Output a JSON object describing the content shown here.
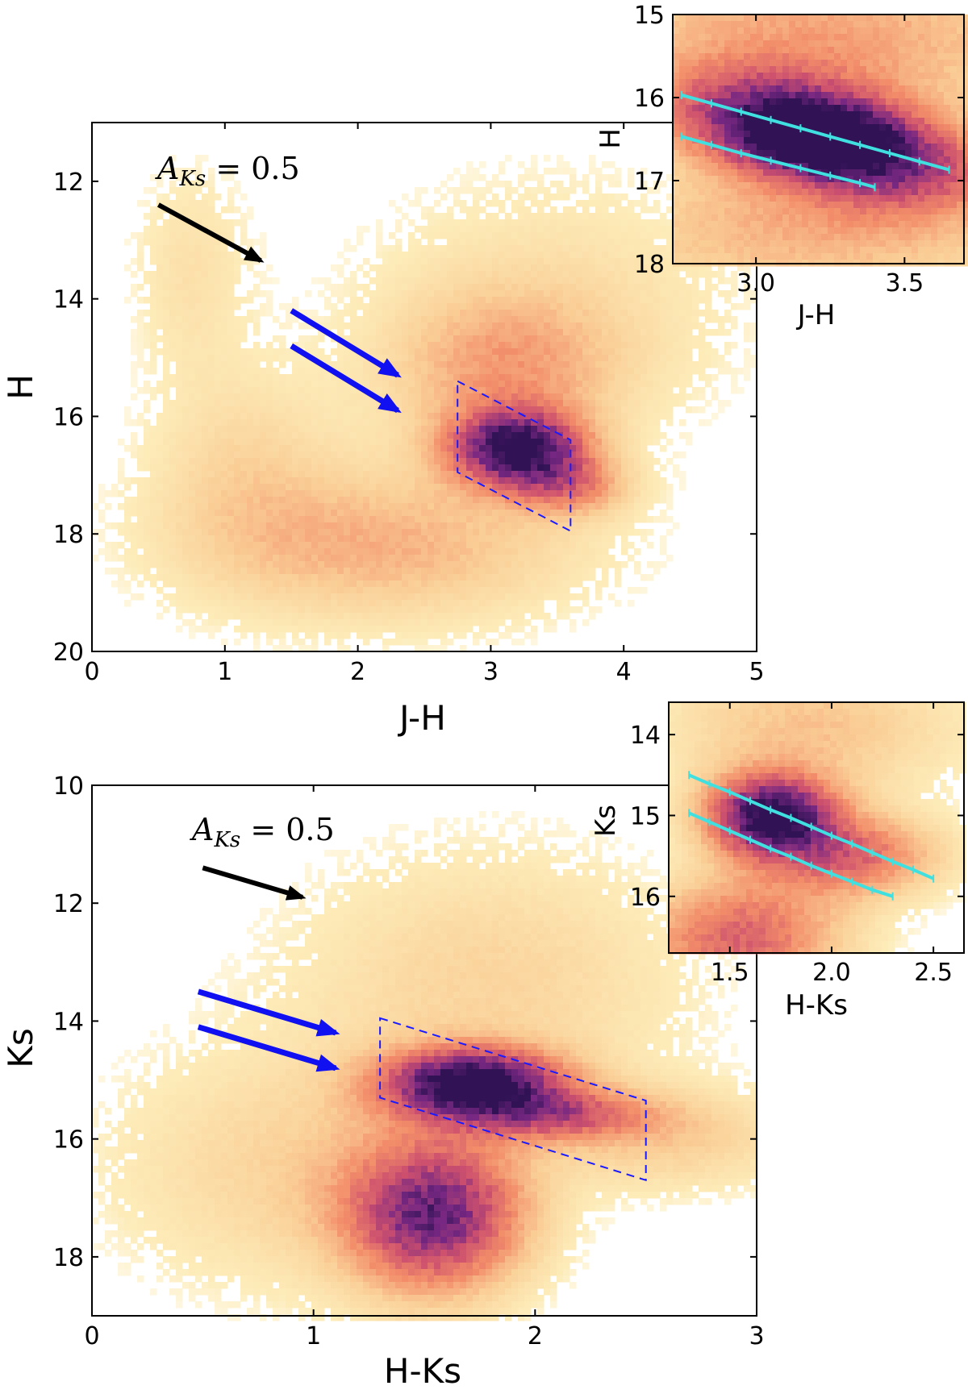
{
  "chart_data": [
    {
      "id": "top-main",
      "type": "heatmap",
      "xlabel": "J-H",
      "ylabel": "H",
      "xlim": [
        0,
        5
      ],
      "ylim": [
        20,
        11
      ],
      "y_inverted": true,
      "xticks": [
        0,
        1,
        2,
        3,
        4,
        5
      ],
      "yticks": [
        12,
        14,
        16,
        18,
        20
      ],
      "annotation": {
        "text": "A_{Ks} = 0.5",
        "display": "A",
        "subscript": "Ks",
        "suffix": " = 0.5"
      },
      "black_arrow": {
        "from": [
          0.5,
          12.4
        ],
        "to": [
          1.27,
          13.35
        ]
      },
      "blue_arrows": [
        {
          "from": [
            1.5,
            14.2
          ],
          "to": [
            2.3,
            15.3
          ]
        },
        {
          "from": [
            1.5,
            14.8
          ],
          "to": [
            2.3,
            15.9
          ]
        }
      ],
      "selection_box": [
        [
          2.75,
          15.4
        ],
        [
          3.6,
          16.4
        ],
        [
          3.6,
          17.95
        ],
        [
          2.75,
          16.95
        ]
      ],
      "density_blobs": [
        {
          "x": 0.75,
          "y": 13.5,
          "sx": 0.3,
          "sy": 1.2,
          "w": 0.12
        },
        {
          "x": 1.15,
          "y": 16.8,
          "sx": 0.5,
          "sy": 1.2,
          "w": 0.15
        },
        {
          "x": 2.2,
          "y": 18.2,
          "sx": 1.0,
          "sy": 0.9,
          "w": 0.3
        },
        {
          "x": 3.1,
          "y": 15.2,
          "sx": 0.6,
          "sy": 0.9,
          "w": 0.3
        },
        {
          "x": 3.2,
          "y": 16.55,
          "sx": 0.35,
          "sy": 0.45,
          "w": 0.95
        },
        {
          "x": 3.6,
          "y": 17.2,
          "sx": 0.3,
          "sy": 0.35,
          "w": 0.35
        },
        {
          "x": 3.5,
          "y": 14.0,
          "sx": 1.0,
          "sy": 1.5,
          "w": 0.12
        }
      ]
    },
    {
      "id": "top-inset",
      "type": "heatmap",
      "xlabel": "J-H",
      "ylabel": "H",
      "xlim": [
        2.72,
        3.7
      ],
      "ylim": [
        18,
        15
      ],
      "y_inverted": true,
      "xticks": [
        3.0,
        3.5
      ],
      "xtick_labels": [
        "3.0",
        "3.5"
      ],
      "yticks": [
        15,
        16,
        17,
        18
      ],
      "series": [
        {
          "x": [
            2.75,
            2.85,
            2.95,
            3.05,
            3.15,
            3.25,
            3.35,
            3.45,
            3.55,
            3.65
          ],
          "y": [
            15.97,
            16.07,
            16.17,
            16.27,
            16.37,
            16.47,
            16.57,
            16.67,
            16.77,
            16.87
          ]
        },
        {
          "x": [
            2.75,
            2.85,
            2.95,
            3.05,
            3.15,
            3.25,
            3.35,
            3.4
          ],
          "y": [
            16.47,
            16.57,
            16.67,
            16.76,
            16.85,
            16.94,
            17.03,
            17.08
          ]
        }
      ],
      "series_color": "#40e0e0",
      "density_blobs": [
        {
          "x": 3.22,
          "y": 16.5,
          "sx": 0.22,
          "sy": 0.3,
          "w": 1.0
        },
        {
          "x": 3.0,
          "y": 16.1,
          "sx": 0.25,
          "sy": 0.35,
          "w": 0.5
        },
        {
          "x": 3.5,
          "y": 16.9,
          "sx": 0.25,
          "sy": 0.35,
          "w": 0.5
        },
        {
          "x": 3.2,
          "y": 15.3,
          "sx": 0.6,
          "sy": 0.8,
          "w": 0.35
        },
        {
          "x": 3.2,
          "y": 17.6,
          "sx": 0.6,
          "sy": 0.6,
          "w": 0.3
        }
      ]
    },
    {
      "id": "bottom-main",
      "type": "heatmap",
      "xlabel": "H-Ks",
      "ylabel": "Ks",
      "xlim": [
        0,
        3
      ],
      "ylim": [
        19,
        10
      ],
      "y_inverted": true,
      "xticks": [
        0,
        1,
        2,
        3
      ],
      "yticks": [
        10,
        12,
        14,
        16,
        18
      ],
      "annotation": {
        "text": "A_{Ks} = 0.5",
        "display": "A",
        "subscript": "Ks",
        "suffix": " = 0.5"
      },
      "black_arrow": {
        "from": [
          0.5,
          11.4
        ],
        "to": [
          0.95,
          11.9
        ]
      },
      "blue_arrows": [
        {
          "from": [
            0.48,
            13.5
          ],
          "to": [
            1.1,
            14.2
          ]
        },
        {
          "from": [
            0.48,
            14.1
          ],
          "to": [
            1.1,
            14.8
          ]
        }
      ],
      "selection_box": [
        [
          1.3,
          13.95
        ],
        [
          2.5,
          15.35
        ],
        [
          2.5,
          16.7
        ],
        [
          1.3,
          15.3
        ]
      ],
      "density_blobs": [
        {
          "x": 1.72,
          "y": 15.05,
          "sx": 0.28,
          "sy": 0.4,
          "w": 1.0
        },
        {
          "x": 2.1,
          "y": 15.6,
          "sx": 0.3,
          "sy": 0.3,
          "w": 0.45
        },
        {
          "x": 1.55,
          "y": 17.3,
          "sx": 0.28,
          "sy": 0.9,
          "w": 0.8
        },
        {
          "x": 0.9,
          "y": 16.5,
          "sx": 0.55,
          "sy": 1.4,
          "w": 0.18
        },
        {
          "x": 1.8,
          "y": 13.3,
          "sx": 0.6,
          "sy": 1.5,
          "w": 0.18
        },
        {
          "x": 2.6,
          "y": 16.0,
          "sx": 0.4,
          "sy": 0.6,
          "w": 0.2
        }
      ]
    },
    {
      "id": "bottom-inset",
      "type": "heatmap",
      "xlabel": "H-Ks",
      "ylabel": "Ks",
      "xlim": [
        1.2,
        2.65
      ],
      "ylim": [
        16.7,
        13.6
      ],
      "y_inverted": true,
      "xticks": [
        1.5,
        2.0,
        2.5
      ],
      "xtick_labels": [
        "1.5",
        "2.0",
        "2.5"
      ],
      "yticks": [
        14,
        15,
        16
      ],
      "series": [
        {
          "x": [
            1.3,
            1.4,
            1.5,
            1.6,
            1.7,
            1.8,
            1.9,
            2.0,
            2.1,
            2.2,
            2.3,
            2.4,
            2.5
          ],
          "y": [
            14.5,
            14.61,
            14.71,
            14.82,
            14.93,
            15.03,
            15.14,
            15.25,
            15.35,
            15.46,
            15.57,
            15.67,
            15.78
          ]
        },
        {
          "x": [
            1.3,
            1.4,
            1.5,
            1.6,
            1.7,
            1.8,
            1.9,
            2.0,
            2.1,
            2.2,
            2.3
          ],
          "y": [
            14.97,
            15.08,
            15.19,
            15.3,
            15.41,
            15.51,
            15.62,
            15.72,
            15.82,
            15.92,
            16.0
          ]
        }
      ],
      "series_color": "#40e0e0",
      "density_blobs": [
        {
          "x": 1.7,
          "y": 15.0,
          "sx": 0.22,
          "sy": 0.35,
          "w": 1.0
        },
        {
          "x": 2.1,
          "y": 15.5,
          "sx": 0.3,
          "sy": 0.35,
          "w": 0.5
        },
        {
          "x": 1.55,
          "y": 16.5,
          "sx": 0.35,
          "sy": 0.5,
          "w": 0.55
        },
        {
          "x": 1.9,
          "y": 13.9,
          "sx": 0.5,
          "sy": 0.6,
          "w": 0.25
        }
      ]
    }
  ]
}
